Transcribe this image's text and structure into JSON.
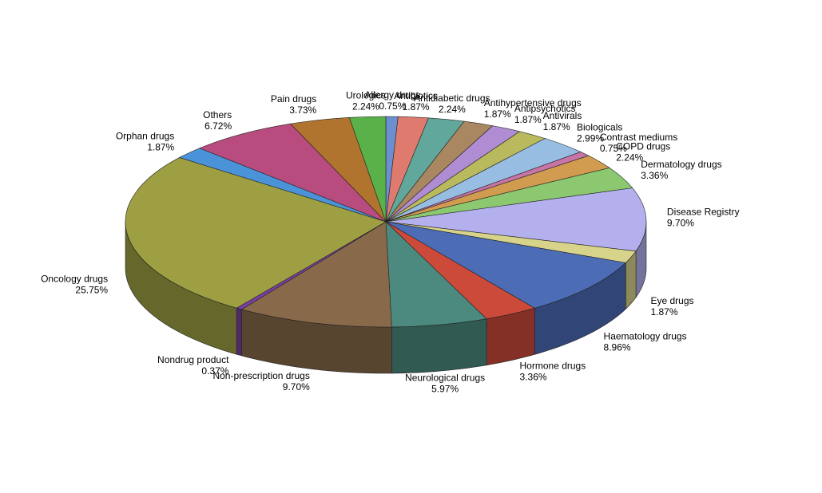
{
  "chart_data": {
    "type": "pie",
    "style": "3d",
    "title": "",
    "legend": "none",
    "slices": [
      {
        "name": "Allergy drugs",
        "value": 0.75,
        "label": "0.75%",
        "color": "#6b8fd1"
      },
      {
        "name": "Antibiotics",
        "value": 1.87,
        "label": "1.87%",
        "color": "#df7b6e"
      },
      {
        "name": "Antidiabetic drugs",
        "value": 2.24,
        "label": "2.24%",
        "color": "#62a79b"
      },
      {
        "name": "Antihypertensive drugs",
        "value": 1.87,
        "label": "1.87%",
        "color": "#a98760"
      },
      {
        "name": "Antipsychotics",
        "value": 1.87,
        "label": "1.87%",
        "color": "#b08cd3"
      },
      {
        "name": "Antivirals",
        "value": 1.87,
        "label": "1.87%",
        "color": "#b9ba5e"
      },
      {
        "name": "Biologicals",
        "value": 2.99,
        "label": "2.99%",
        "color": "#98bde2"
      },
      {
        "name": "Contrast mediums",
        "value": 0.75,
        "label": "0.75%",
        "color": "#c774a7"
      },
      {
        "name": "COPD drugs",
        "value": 2.24,
        "label": "2.24%",
        "color": "#d19b50"
      },
      {
        "name": "Dermatology drugs",
        "value": 3.36,
        "label": "3.36%",
        "color": "#8cc870"
      },
      {
        "name": "Disease Registry",
        "value": 9.7,
        "label": "9.70%",
        "color": "#b4b0ee"
      },
      {
        "name": "Eye drugs",
        "value": 1.87,
        "label": "1.87%",
        "color": "#d8d38a"
      },
      {
        "name": "Haematology drugs",
        "value": 8.96,
        "label": "8.96%",
        "color": "#4c6cb5"
      },
      {
        "name": "Hormone drugs",
        "value": 3.36,
        "label": "3.36%",
        "color": "#cc4a3a"
      },
      {
        "name": "Neurological drugs",
        "value": 5.97,
        "label": "5.97%",
        "color": "#4c8a80"
      },
      {
        "name": "Non-prescription drugs",
        "value": 9.7,
        "label": "9.70%",
        "color": "#886a4a"
      },
      {
        "name": "Nondrug product",
        "value": 0.37,
        "label": "0.37%",
        "color": "#7a3fa3"
      },
      {
        "name": "Oncology drugs",
        "value": 25.75,
        "label": "25.75%",
        "color": "#9d9f42"
      },
      {
        "name": "Orphan drugs",
        "value": 1.87,
        "label": "1.87%",
        "color": "#4b93d8"
      },
      {
        "name": "Others",
        "value": 6.72,
        "label": "6.72%",
        "color": "#b84c7e"
      },
      {
        "name": "Pain drugs",
        "value": 3.73,
        "label": "3.73%",
        "color": "#b0742e"
      },
      {
        "name": "Urologics",
        "value": 2.24,
        "label": "2.24%",
        "color": "#5ab14a"
      }
    ]
  }
}
